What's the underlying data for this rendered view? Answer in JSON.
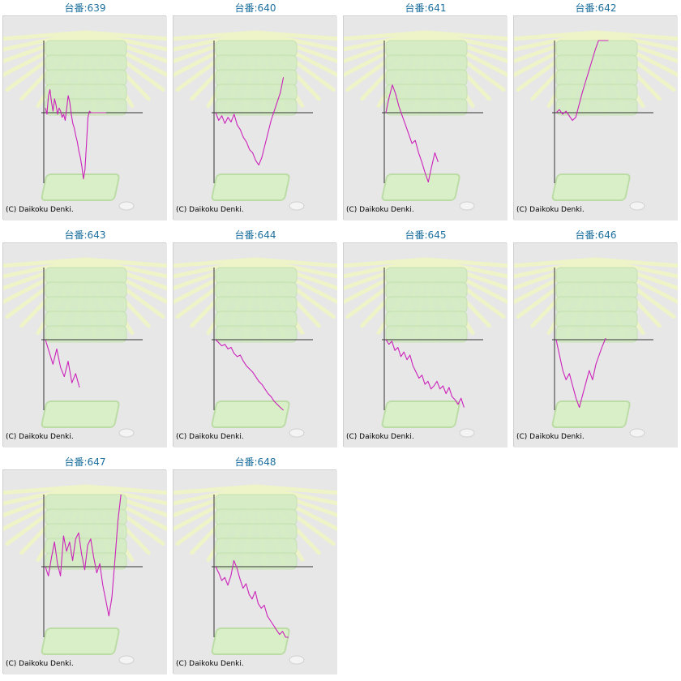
{
  "colors": {
    "title": "#1a6e9e",
    "line": "#cc22bb",
    "axis": "#333333",
    "panel_bg": "#e7e7e7",
    "decor_green": "#d4ecc4",
    "decor_rays": "#eef3c8"
  },
  "icons": [
    "slot-machine-background-icon",
    "ray-burst-icon",
    "tray-icon",
    "coin-icon"
  ],
  "chart_data": [
    {
      "type": "line",
      "title": "台番:639",
      "credit": "(C) Daikoku Denki.",
      "x": [
        0,
        2,
        4,
        6,
        8,
        10,
        12,
        14,
        16,
        18,
        20,
        22,
        24,
        26,
        28,
        30,
        32,
        34,
        36,
        38,
        40,
        42,
        44,
        46,
        48,
        50,
        52,
        54,
        56,
        58,
        60,
        62,
        64,
        66,
        68,
        70,
        72,
        74,
        76,
        78,
        80
      ],
      "y": [
        0.15,
        -0.05,
        0.55,
        0.75,
        0.35,
        0.05,
        0.45,
        0.25,
        -0.05,
        0.15,
        0.05,
        -0.15,
        -0.05,
        -0.25,
        0.15,
        0.55,
        0.35,
        -0.05,
        -0.35,
        -0.5,
        -0.75,
        -0.95,
        -1.25,
        -1.45,
        -1.75,
        -2.15,
        -1.85,
        -1.05,
        -0.15,
        0.05,
        0,
        0,
        0,
        0,
        0,
        0,
        0,
        0,
        0,
        0,
        0
      ],
      "points": 55
    },
    {
      "type": "line",
      "title": "台番:640",
      "credit": "(C) Daikoku Denki.",
      "y": [
        0,
        -0.25,
        -0.1,
        -0.35,
        -0.15,
        -0.3,
        -0.05,
        -0.4,
        -0.55,
        -0.8,
        -0.95,
        -1.2,
        -1.3,
        -1.55,
        -1.7,
        -1.45,
        -1.05,
        -0.65,
        -0.25,
        0.05,
        0.35,
        0.65,
        1.15
      ]
    },
    {
      "type": "line",
      "title": "台番:641",
      "credit": "(C) Daikoku Denki.",
      "y": [
        0,
        0.5,
        0.9,
        0.6,
        0.2,
        -0.1,
        -0.4,
        -0.7,
        -1.0,
        -0.9,
        -1.3,
        -1.6,
        -1.95,
        -2.25,
        -1.75,
        -1.3,
        -1.6
      ]
    },
    {
      "type": "line",
      "title": "台番:642",
      "credit": "(C) Daikoku Denki.",
      "y": [
        0,
        0.1,
        -0.05,
        0.05,
        -0.1,
        -0.25,
        -0.15,
        0.25,
        0.65,
        1.0,
        1.35,
        1.7,
        2.05,
        2.35,
        2.7,
        2.95,
        2.85
      ]
    },
    {
      "type": "line",
      "title": "台番:643",
      "credit": "(C) Daikoku Denki.",
      "y": [
        0,
        -0.4,
        -0.8,
        -0.3,
        -0.9,
        -1.2,
        -0.7,
        -1.4,
        -1.1,
        -1.55
      ]
    },
    {
      "type": "line",
      "title": "台番:644",
      "credit": "(C) Daikoku Denki.",
      "y": [
        0,
        -0.1,
        -0.2,
        -0.15,
        -0.3,
        -0.25,
        -0.45,
        -0.55,
        -0.5,
        -0.7,
        -0.85,
        -0.95,
        -1.05,
        -1.2,
        -1.35,
        -1.45,
        -1.6,
        -1.75,
        -1.85,
        -2.0,
        -2.1,
        -2.2,
        -2.3
      ]
    },
    {
      "type": "line",
      "title": "台番:645",
      "credit": "(C) Daikoku Denki.",
      "y": [
        0,
        -0.15,
        -0.05,
        -0.35,
        -0.25,
        -0.55,
        -0.4,
        -0.65,
        -0.5,
        -0.85,
        -1.05,
        -1.25,
        -1.15,
        -1.45,
        -1.35,
        -1.6,
        -1.5,
        -1.35,
        -1.6,
        -1.5,
        -1.75,
        -1.55,
        -1.85,
        -1.95,
        -2.1,
        -1.9,
        -2.2
      ]
    },
    {
      "type": "line",
      "title": "台番:646",
      "credit": "(C) Daikoku Denki.",
      "y": [
        0,
        -0.5,
        -1.0,
        -1.3,
        -1.1,
        -1.5,
        -1.9,
        -2.2,
        -1.8,
        -1.4,
        -1.0,
        -1.3,
        -0.8,
        -0.5,
        -0.2,
        0.05
      ]
    },
    {
      "type": "line",
      "title": "台番:647",
      "credit": "(C) Daikoku Denki.",
      "y": [
        0,
        -0.3,
        0.3,
        0.8,
        0.1,
        -0.3,
        1.0,
        0.5,
        0.8,
        0.2,
        0.9,
        1.1,
        0.4,
        -0.1,
        0.7,
        0.9,
        0.3,
        -0.2,
        0.1,
        -0.6,
        -1.1,
        -1.6,
        -1.0,
        0.2,
        1.5,
        2.6
      ]
    },
    {
      "type": "line",
      "title": "台番:648",
      "credit": "(C) Daikoku Denki.",
      "y": [
        0,
        -0.2,
        -0.45,
        -0.35,
        -0.6,
        -0.3,
        0.2,
        -0.05,
        -0.4,
        -0.7,
        -0.55,
        -0.9,
        -1.05,
        -0.8,
        -1.2,
        -1.35,
        -1.25,
        -1.6,
        -1.75,
        -1.9,
        -2.05,
        -2.2,
        -2.1,
        -2.35,
        -2.45
      ]
    }
  ]
}
